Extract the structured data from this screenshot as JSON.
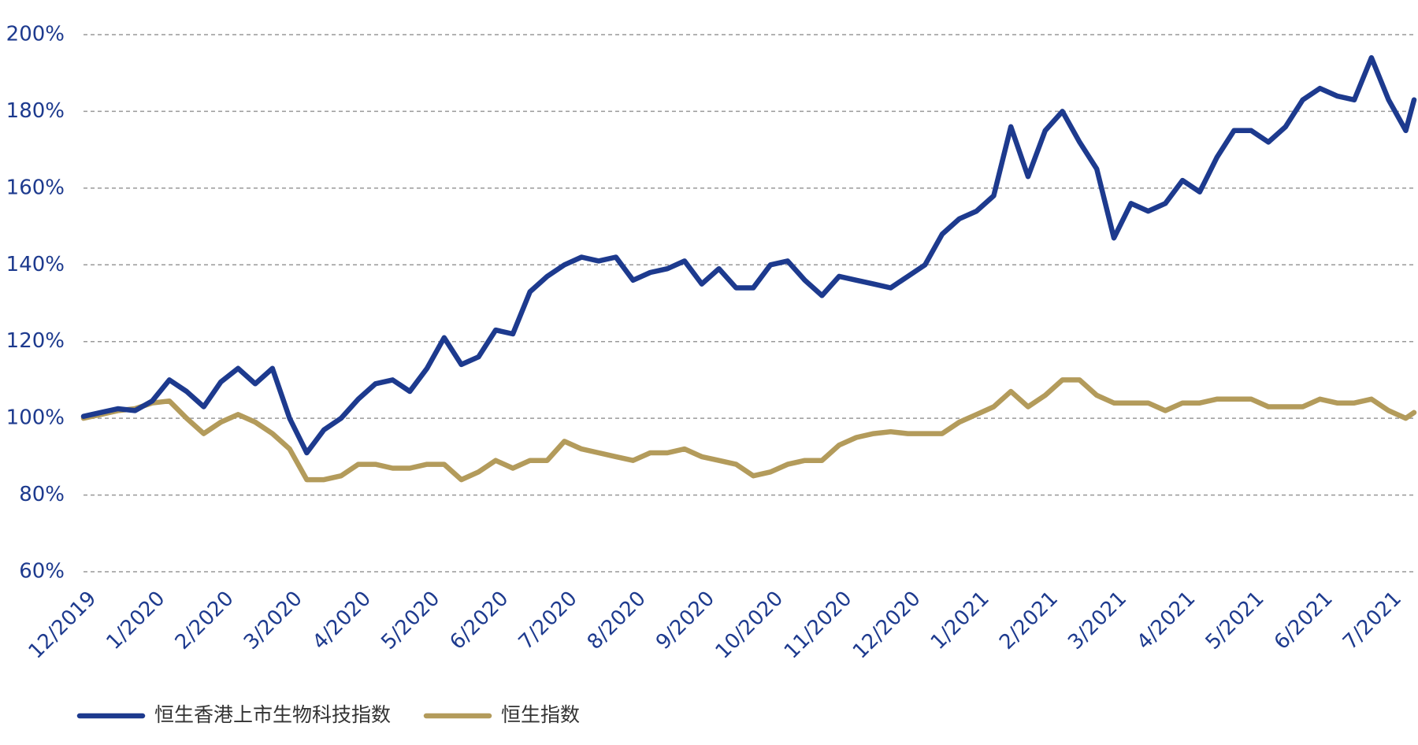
{
  "chart_data": {
    "type": "line",
    "x": [
      0,
      0.25,
      0.5,
      0.75,
      1,
      1.25,
      1.5,
      1.75,
      2,
      2.25,
      2.5,
      2.75,
      3,
      3.25,
      3.5,
      3.75,
      4,
      4.25,
      4.5,
      4.75,
      5,
      5.25,
      5.5,
      5.75,
      6,
      6.25,
      6.5,
      6.75,
      7,
      7.25,
      7.5,
      7.75,
      8,
      8.25,
      8.5,
      8.75,
      9,
      9.25,
      9.5,
      9.75,
      10,
      10.25,
      10.5,
      10.75,
      11,
      11.25,
      11.5,
      11.75,
      12,
      12.25,
      12.5,
      12.75,
      13,
      13.25,
      13.5,
      13.75,
      14,
      14.25,
      14.5,
      14.75,
      15,
      15.25,
      15.5,
      15.75,
      16,
      16.25,
      16.5,
      16.75,
      17,
      17.25,
      17.5,
      17.75,
      18,
      18.25,
      18.5,
      18.75,
      19,
      19.25,
      19.37
    ],
    "series": [
      {
        "name": "恒生香港上市生物科技指数",
        "color": "#1d3a8e",
        "values": [
          100.5,
          101.5,
          102.5,
          102,
          104.5,
          110,
          107,
          103,
          109.5,
          113,
          109,
          113,
          100,
          91,
          97,
          100,
          105,
          109,
          110,
          107,
          113,
          121,
          114,
          116,
          123,
          122,
          133,
          137,
          140,
          142,
          141,
          142,
          136,
          138,
          139,
          141,
          135,
          139,
          134,
          134,
          140,
          141,
          136,
          132,
          137,
          136,
          135,
          134,
          137,
          140,
          148,
          152,
          154,
          158,
          176,
          163,
          175,
          180,
          172,
          165,
          147,
          156,
          154,
          156,
          162,
          159,
          168,
          175,
          175,
          172,
          176,
          183,
          186,
          184,
          183,
          194,
          183,
          175,
          183
        ]
      },
      {
        "name": "恒生指数",
        "color": "#b39b5b",
        "values": [
          100,
          101,
          102,
          102.5,
          104,
          104.5,
          100,
          96,
          99,
          101,
          99,
          96,
          92,
          84,
          84,
          85,
          88,
          88,
          87,
          87,
          88,
          88,
          84,
          86,
          89,
          87,
          89,
          89,
          94,
          92,
          91,
          90,
          89,
          91,
          91,
          92,
          90,
          89,
          88,
          85,
          86,
          88,
          89,
          89,
          93,
          95,
          96,
          96.5,
          96,
          96,
          96,
          99,
          101,
          103,
          107,
          103,
          106,
          110,
          110,
          106,
          104,
          104,
          104,
          102,
          104,
          104,
          105,
          105,
          105,
          103,
          103,
          103,
          105,
          104,
          104,
          105,
          102,
          100,
          101.5
        ]
      }
    ],
    "xlim": [
      0,
      19.37
    ],
    "xticks": [
      {
        "value": 0,
        "label": "12/2019"
      },
      {
        "value": 1,
        "label": "1/2020"
      },
      {
        "value": 2,
        "label": "2/2020"
      },
      {
        "value": 3,
        "label": "3/2020"
      },
      {
        "value": 4,
        "label": "4/2020"
      },
      {
        "value": 5,
        "label": "5/2020"
      },
      {
        "value": 6,
        "label": "6/2020"
      },
      {
        "value": 7,
        "label": "7/2020"
      },
      {
        "value": 8,
        "label": "8/2020"
      },
      {
        "value": 9,
        "label": "9/2020"
      },
      {
        "value": 10,
        "label": "10/2020"
      },
      {
        "value": 11,
        "label": "11/2020"
      },
      {
        "value": 12,
        "label": "12/2020"
      },
      {
        "value": 13,
        "label": "1/2021"
      },
      {
        "value": 14,
        "label": "2/2021"
      },
      {
        "value": 15,
        "label": "3/2021"
      },
      {
        "value": 16,
        "label": "4/2021"
      },
      {
        "value": 17,
        "label": "5/2021"
      },
      {
        "value": 18,
        "label": "6/2021"
      },
      {
        "value": 19,
        "label": "7/2021"
      }
    ],
    "ylim": [
      60,
      200
    ],
    "yticks": [
      {
        "value": 60,
        "label": "60%"
      },
      {
        "value": 80,
        "label": "80%"
      },
      {
        "value": 100,
        "label": "100%"
      },
      {
        "value": 120,
        "label": "120%"
      },
      {
        "value": 140,
        "label": "140%"
      },
      {
        "value": 160,
        "label": "160%"
      },
      {
        "value": 180,
        "label": "180%"
      },
      {
        "value": 200,
        "label": "200%"
      }
    ],
    "grid": true,
    "legend": "bottom"
  }
}
